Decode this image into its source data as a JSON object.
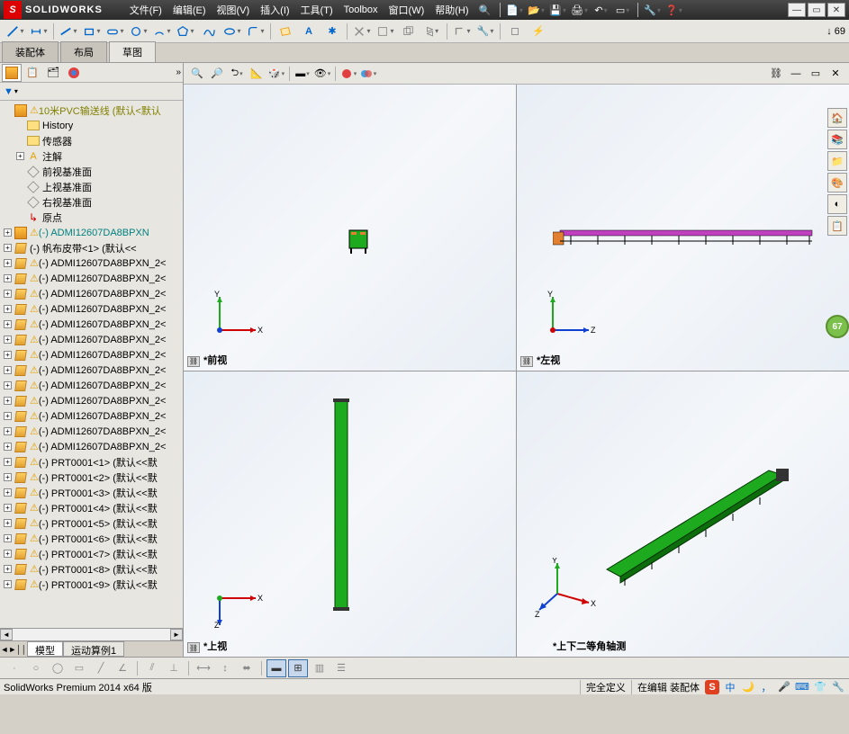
{
  "app": {
    "title": "SOLIDWORKS",
    "search_badge": "↓ 69"
  },
  "menus": [
    "文件(F)",
    "编辑(E)",
    "视图(V)",
    "插入(I)",
    "工具(T)",
    "Toolbox",
    "窗口(W)",
    "帮助(H)"
  ],
  "tabs": {
    "items": [
      "装配体",
      "布局",
      "草图"
    ],
    "active": 2
  },
  "tree": {
    "root": "10米PVC输送线 (默认<默认",
    "history": "History",
    "sensors": "传感器",
    "annotations": "注解",
    "planes": [
      "前视基准面",
      "上视基准面",
      "右视基准面"
    ],
    "origin": "原点",
    "first_comp": "(-) ADMI12607DA8BPXN",
    "belt": "(-) 帆布皮带<1> (默认<<",
    "admi_items": [
      "(-) ADMI12607DA8BPXN_2<",
      "(-) ADMI12607DA8BPXN_2<",
      "(-) ADMI12607DA8BPXN_2<",
      "(-) ADMI12607DA8BPXN_2<",
      "(-) ADMI12607DA8BPXN_2<",
      "(-) ADMI12607DA8BPXN_2<",
      "(-) ADMI12607DA8BPXN_2<",
      "(-) ADMI12607DA8BPXN_2<",
      "(-) ADMI12607DA8BPXN_2<",
      "(-) ADMI12607DA8BPXN_2<",
      "(-) ADMI12607DA8BPXN_2<",
      "(-) ADMI12607DA8BPXN_2<",
      "(-) ADMI12607DA8BPXN_2<"
    ],
    "prt_items": [
      "(-) PRT0001<1> (默认<<默",
      "(-) PRT0001<2> (默认<<默",
      "(-) PRT0001<3> (默认<<默",
      "(-) PRT0001<4> (默认<<默",
      "(-) PRT0001<5> (默认<<默",
      "(-) PRT0001<6> (默认<<默",
      "(-) PRT0001<7> (默认<<默",
      "(-) PRT0001<8> (默认<<默",
      "(-) PRT0001<9> (默认<<默"
    ]
  },
  "bottom_tabs": {
    "items": [
      "模型",
      "运动算例1"
    ],
    "active": 0
  },
  "viewports": {
    "front": {
      "label": "*前视",
      "triad_x": "X",
      "triad_y": "Y"
    },
    "left": {
      "label": "*左视",
      "triad_y": "Y",
      "triad_z": "Z"
    },
    "top": {
      "label": "*上视",
      "triad_x": "X",
      "triad_z": "Z"
    },
    "iso": {
      "label": "*上下二等角轴测",
      "triad_x": "X",
      "triad_y": "Y",
      "triad_z": "Z"
    }
  },
  "badge": "67",
  "status": {
    "version": "SolidWorks Premium 2014 x64 版",
    "def": "完全定义",
    "edit": "在编辑 装配体"
  },
  "colors": {
    "green": "#1eaa1e",
    "magenta": "#c040c0",
    "orange": "#e08030",
    "red": "#d00000",
    "blue": "#1040d0"
  }
}
